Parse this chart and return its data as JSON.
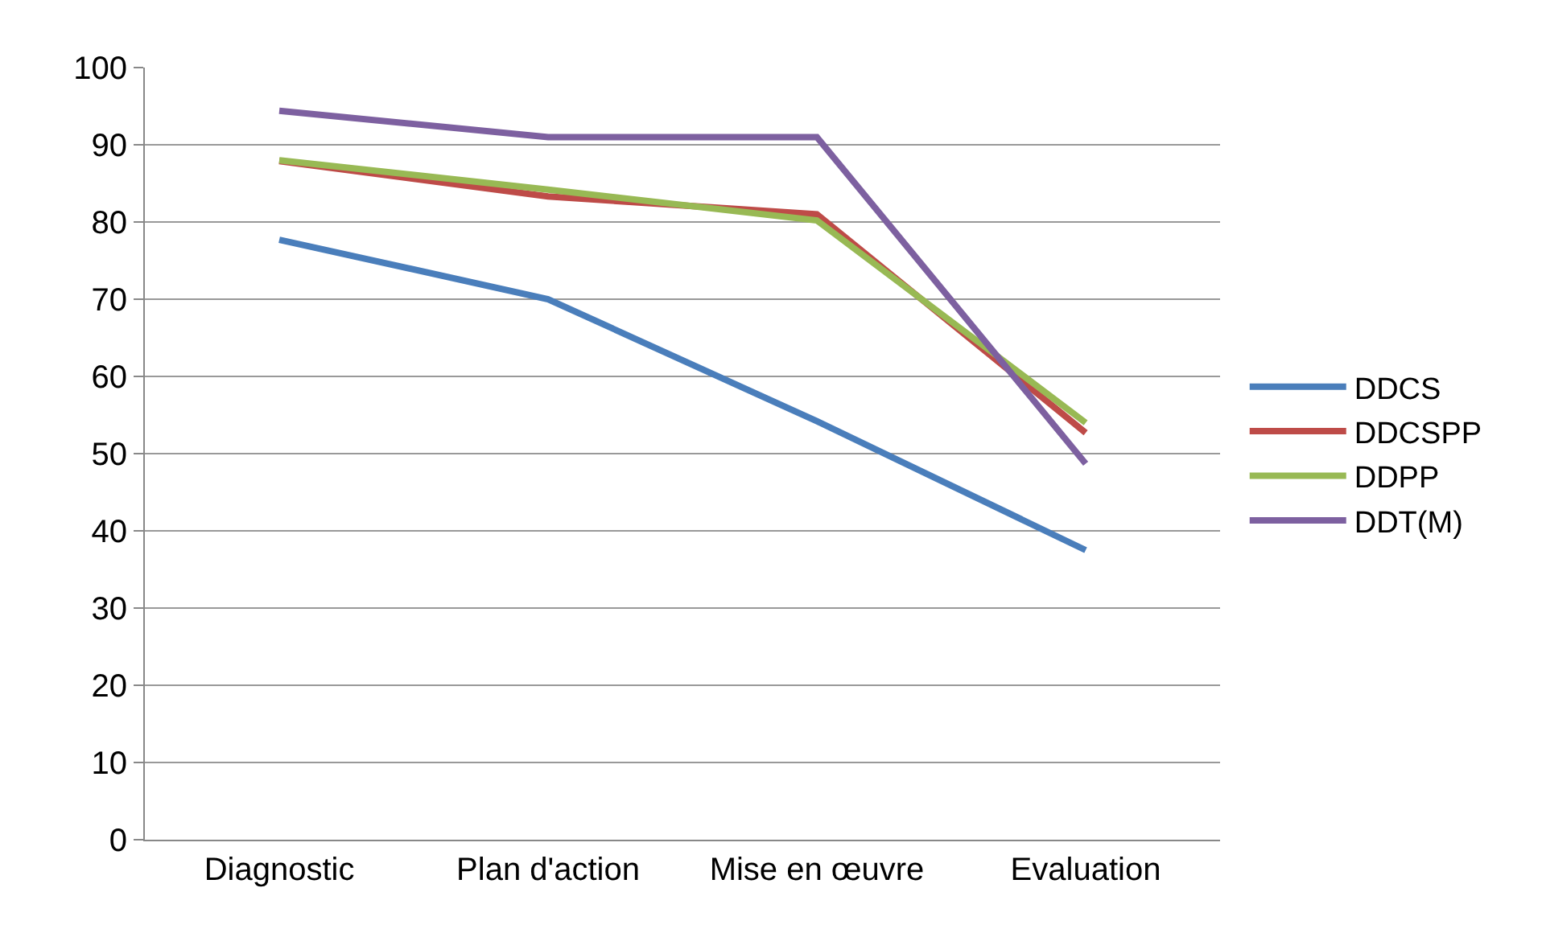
{
  "chart_data": {
    "type": "line",
    "categories": [
      "Diagnostic",
      "Plan d'action",
      "Mise en œuvre",
      "Evaluation"
    ],
    "series": [
      {
        "name": "DDCS",
        "color": "#4a7ebb",
        "values": [
          77.7,
          70,
          54.2,
          37.5
        ]
      },
      {
        "name": "DDCSPP",
        "color": "#be4b48",
        "values": [
          87.9,
          83.3,
          81,
          52.7
        ]
      },
      {
        "name": "DDPP",
        "color": "#98b954",
        "values": [
          88,
          84.2,
          80.2,
          54
        ]
      },
      {
        "name": "DDT(M)",
        "color": "#7d60a0",
        "values": [
          94.4,
          91,
          91,
          48.7
        ]
      }
    ],
    "ylim": [
      0,
      100
    ],
    "yticks": [
      0,
      10,
      20,
      30,
      40,
      50,
      60,
      70,
      80,
      90,
      100
    ],
    "grid": "y",
    "legend": "right",
    "marker": "none",
    "line_style": "solid"
  }
}
